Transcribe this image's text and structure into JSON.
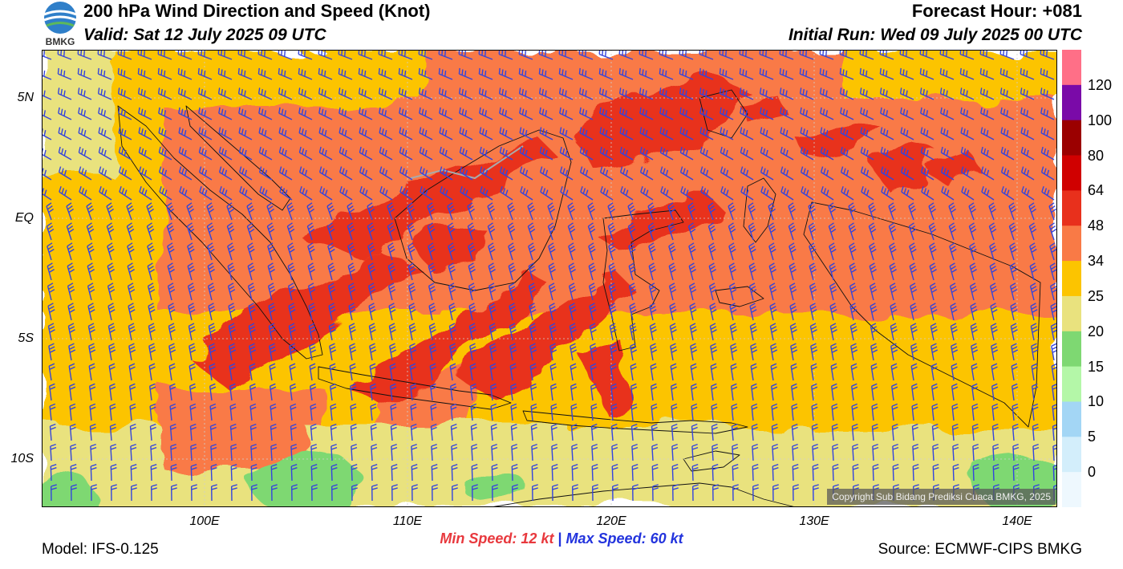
{
  "header": {
    "title": "200 hPa Wind Direction and Speed (Knot)",
    "valid": "Valid: Sat 12 July 2025 09 UTC",
    "forecast_hour": "Forecast Hour: +081",
    "initial_run": "Initial Run: Wed 09 July 2025 00 UTC"
  },
  "logo": {
    "icon": "bmkg-logo-icon",
    "text": "BMKG"
  },
  "axes": {
    "lat_labels": [
      "5N",
      "EQ",
      "5S",
      "10S"
    ],
    "lon_labels": [
      "100E",
      "110E",
      "120E",
      "130E",
      "140E"
    ]
  },
  "colorbar": {
    "labels": [
      "120",
      "100",
      "80",
      "64",
      "48",
      "34",
      "25",
      "20",
      "15",
      "10",
      "5",
      "0"
    ],
    "colors": [
      "#ff6f87",
      "#7a0aa8",
      "#9b0000",
      "#d00000",
      "#e8301c",
      "#f97a46",
      "#fcc400",
      "#e9e27e",
      "#7ed872",
      "#b4f7a8",
      "#a3d6f5",
      "#d3eefb",
      "#eef8fe"
    ]
  },
  "stats": {
    "min_label": "Min Speed:",
    "min_value": "12 kt",
    "separator": "|",
    "max_label": "Max Speed:",
    "max_value": "60 kt"
  },
  "footer": {
    "model": "Model: IFS-0.125",
    "source": "Source: ECMWF-CIPS BMKG",
    "copyright": "Copyright Sub Bidang Prediksi Cuaca BMKG, 2025"
  },
  "map": {
    "wind_barb_color": "#3344dd",
    "coastline_color": "#111111"
  }
}
